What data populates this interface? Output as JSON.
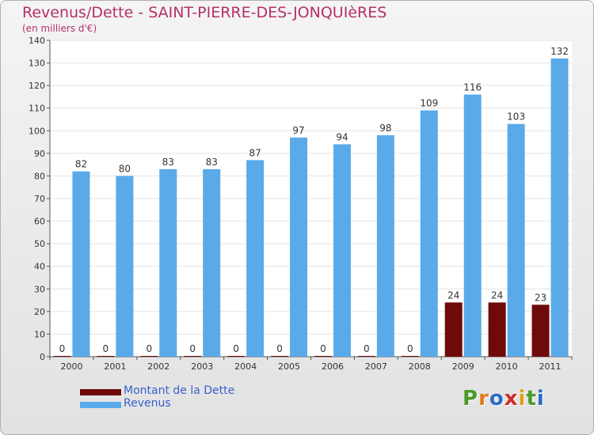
{
  "header": {
    "title": "Revenus/Dette - SAINT-PIERRE-DES-JONQUIèRES",
    "subtitle": "(en milliers d'€)"
  },
  "chart_data": {
    "type": "bar",
    "categories": [
      "2000",
      "2001",
      "2002",
      "2003",
      "2004",
      "2005",
      "2006",
      "2007",
      "2008",
      "2009",
      "2010",
      "2011"
    ],
    "series": [
      {
        "name": "Montant de la Dette",
        "color": "#6e0a0a",
        "values": [
          0,
          0,
          0,
          0,
          0,
          0,
          0,
          0,
          0,
          24,
          24,
          23
        ]
      },
      {
        "name": "Revenus",
        "color": "#5aaaea",
        "values": [
          82,
          80,
          83,
          83,
          87,
          97,
          94,
          98,
          109,
          116,
          103,
          132
        ]
      }
    ],
    "ylim": [
      0,
      140
    ],
    "yticks": [
      0,
      10,
      20,
      30,
      40,
      50,
      60,
      70,
      80,
      90,
      100,
      110,
      120,
      130,
      140
    ],
    "grid": true,
    "legend": "bottom-left"
  },
  "legend": {
    "items": [
      {
        "label": "Montant de la Dette",
        "color": "#6e0a0a"
      },
      {
        "label": "Revenus",
        "color": "#5aaaea"
      }
    ]
  },
  "logo": {
    "letters": [
      "P",
      "r",
      "o",
      "x",
      "i",
      "t",
      "i"
    ],
    "colors": [
      "#4a9a2a",
      "#e07a1a",
      "#2a6ac8",
      "#d02a2a",
      "#e0a01a",
      "#4a9a2a",
      "#2a6ac8"
    ]
  }
}
